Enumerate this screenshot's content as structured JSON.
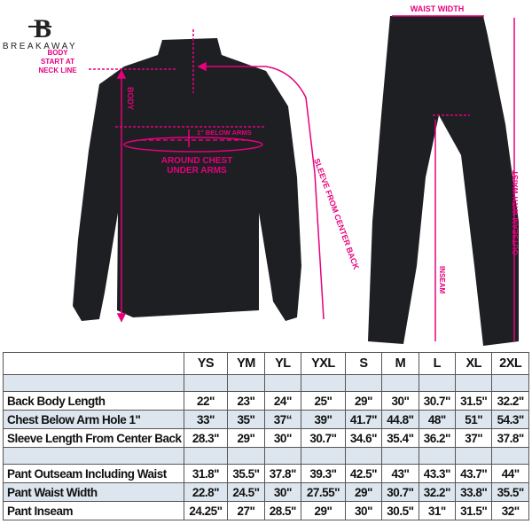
{
  "brand": {
    "name": "BREAKAWAY",
    "logo_letter": "B"
  },
  "colors": {
    "accent": "#e6007e",
    "garment": "#1e1f22",
    "shade": "#dde6ee"
  },
  "annotations": {
    "body_start": [
      "BODY",
      "START AT",
      "NECK LINE"
    ],
    "body": "BODY",
    "below_arms": "1\" BELOW ARMS",
    "around_chest": [
      "AROUND CHEST",
      "UNDER ARMS"
    ],
    "sleeve": "SLEEVE FROM CENTER BACK",
    "waist_width": "WAIST WIDTH",
    "inseam": "INSEAM",
    "outseam": "OUTSEAM WITH WAIST"
  },
  "table": {
    "sizes": [
      "YS",
      "YM",
      "YL",
      "YXL",
      "S",
      "M",
      "L",
      "XL",
      "2XL"
    ],
    "rows": [
      {
        "label": "Back Body Length",
        "values": [
          "22\"",
          "23\"",
          "24\"",
          "25\"",
          "29\"",
          "30\"",
          "30.7\"",
          "31.5\"",
          "32.2\""
        ]
      },
      {
        "label": "Chest Below Arm Hole 1\"",
        "values": [
          "33\"",
          "35\"",
          "37“",
          "39\"",
          "41.7\"",
          "44.8\"",
          "48\"",
          "51\"",
          "54.3\""
        ]
      },
      {
        "label": "Sleeve Length From Center Back",
        "values": [
          "28.3\"",
          "29\"",
          "30\"",
          "30.7\"",
          "34.6\"",
          "35.4\"",
          "36.2\"",
          "37\"",
          "37.8\""
        ]
      },
      {
        "label": "Pant Outseam Including Waist",
        "values": [
          "31.8\"",
          "35.5\"",
          "37.8\"",
          "39.3\"",
          "42.5\"",
          "43\"",
          "43.3\"",
          "43.7\"",
          "44\""
        ]
      },
      {
        "label": "Pant Waist Width",
        "values": [
          "22.8\"",
          "24.5\"",
          "30\"",
          "27.55\"",
          "29\"",
          "30.7\"",
          "32.2\"",
          "33.8\"",
          "35.5\""
        ]
      },
      {
        "label": "Pant Inseam",
        "values": [
          "24.25\"",
          "27\"",
          "28.5\"",
          "29\"",
          "30\"",
          "30.5\"",
          "31\"",
          "31.5\"",
          "32\""
        ]
      }
    ]
  }
}
